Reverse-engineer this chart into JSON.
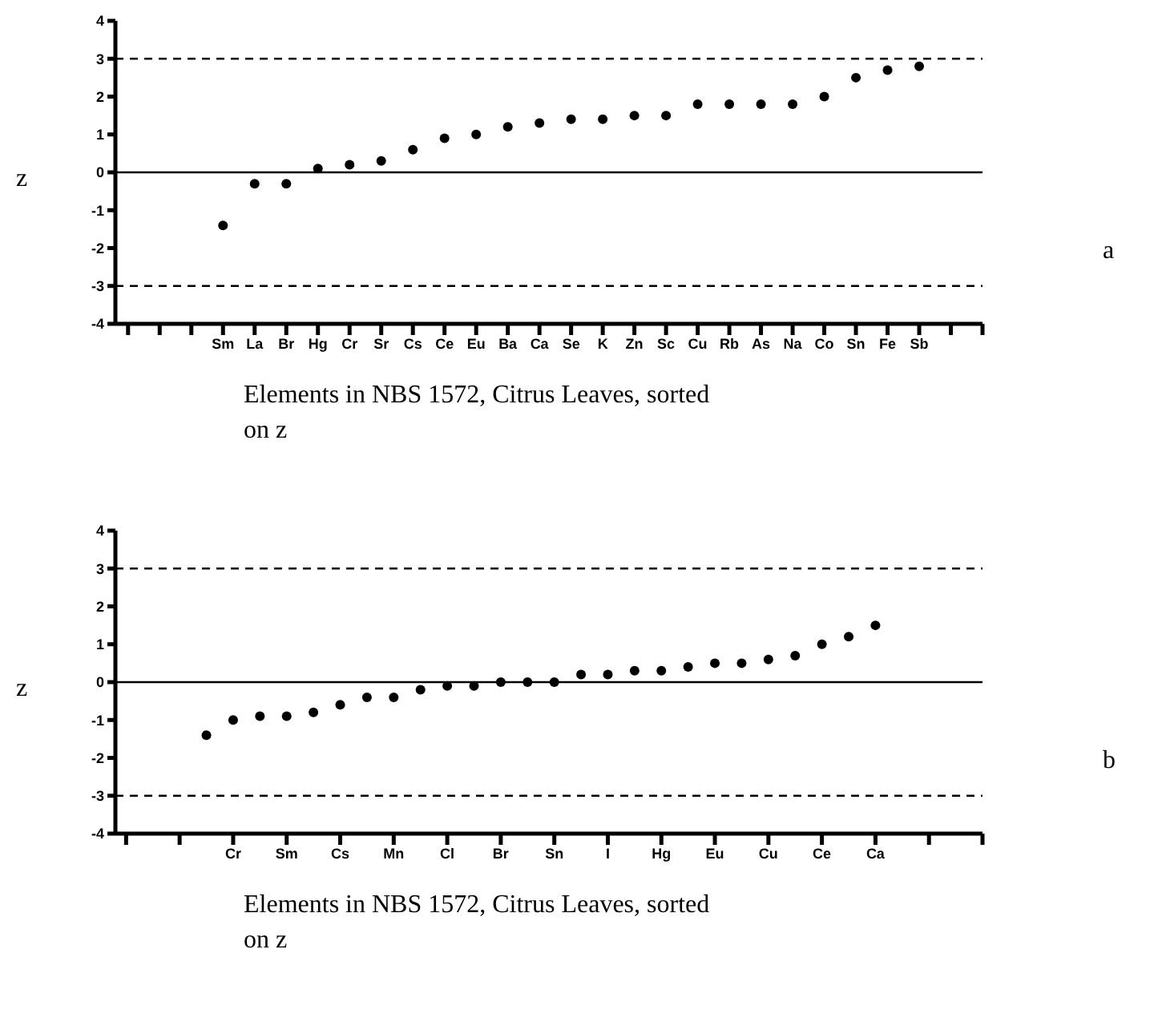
{
  "chart_data": [
    {
      "type": "scatter",
      "xlabel": "Elements in NBS 1572, Citrus Leaves, sorted on z",
      "ylabel": "z",
      "categories": [
        null,
        null,
        null,
        "Sm",
        "La",
        "Br",
        "Hg",
        "Cr",
        "Sr",
        "Cs",
        "Ce",
        "Eu",
        "Ba",
        "Ca",
        "Se",
        "K",
        "Zn",
        "Sc",
        "Cu",
        "Rb",
        "As",
        "Na",
        "Co",
        "Sn",
        "Fe",
        "Sb",
        null,
        null
      ],
      "values": [
        null,
        null,
        null,
        -1.4,
        -0.3,
        -0.3,
        0.1,
        0.2,
        0.3,
        0.6,
        0.9,
        1.0,
        1.2,
        1.3,
        1.4,
        1.4,
        1.5,
        1.5,
        1.8,
        1.8,
        1.8,
        1.8,
        2.0,
        2.5,
        2.7,
        2.8,
        null,
        null
      ],
      "color": "#000000",
      "marker": "circle",
      "ylim": [
        -4,
        4
      ],
      "yticks": [
        -4,
        -3,
        -2,
        -1,
        0,
        1,
        2,
        3,
        4
      ],
      "grid": false,
      "legend": false,
      "ref_lines": [
        {
          "axis": "y",
          "value": 3,
          "line_style": "dashed"
        },
        {
          "axis": "y",
          "value": 0,
          "line_style": "solid"
        },
        {
          "axis": "y",
          "value": -3,
          "line_style": "dashed"
        }
      ],
      "annotations": [
        "a"
      ]
    },
    {
      "type": "scatter",
      "xlabel": "Elements in NBS 1572, Citrus Leaves, sorted on z",
      "ylabel": "z",
      "categories": [
        null,
        null,
        null,
        null,
        "Cr",
        null,
        "Sm",
        null,
        "Cs",
        null,
        "Mn",
        null,
        "Cl",
        null,
        "Br",
        null,
        "Sn",
        null,
        "I",
        null,
        "Hg",
        null,
        "Eu",
        null,
        "Cu",
        null,
        "Ce",
        null,
        "Ca",
        null,
        null,
        null,
        null
      ],
      "values": [
        null,
        null,
        null,
        -1.4,
        -1.0,
        -0.9,
        -0.9,
        -0.8,
        -0.6,
        -0.4,
        -0.4,
        -0.2,
        -0.1,
        -0.1,
        0.0,
        0.0,
        0.0,
        0.2,
        0.2,
        0.3,
        0.3,
        0.4,
        0.5,
        0.5,
        0.6,
        0.7,
        1.0,
        1.2,
        1.5,
        null,
        null,
        null,
        null
      ],
      "color": "#000000",
      "marker": "circle",
      "ylim": [
        -4,
        4
      ],
      "yticks": [
        -4,
        -3,
        -2,
        -1,
        0,
        1,
        2,
        3,
        4
      ],
      "grid": false,
      "legend": false,
      "ref_lines": [
        {
          "axis": "y",
          "value": 3,
          "line_style": "dashed"
        },
        {
          "axis": "y",
          "value": 0,
          "line_style": "solid"
        },
        {
          "axis": "y",
          "value": -3,
          "line_style": "dashed"
        }
      ],
      "annotations": [
        "b"
      ]
    }
  ]
}
